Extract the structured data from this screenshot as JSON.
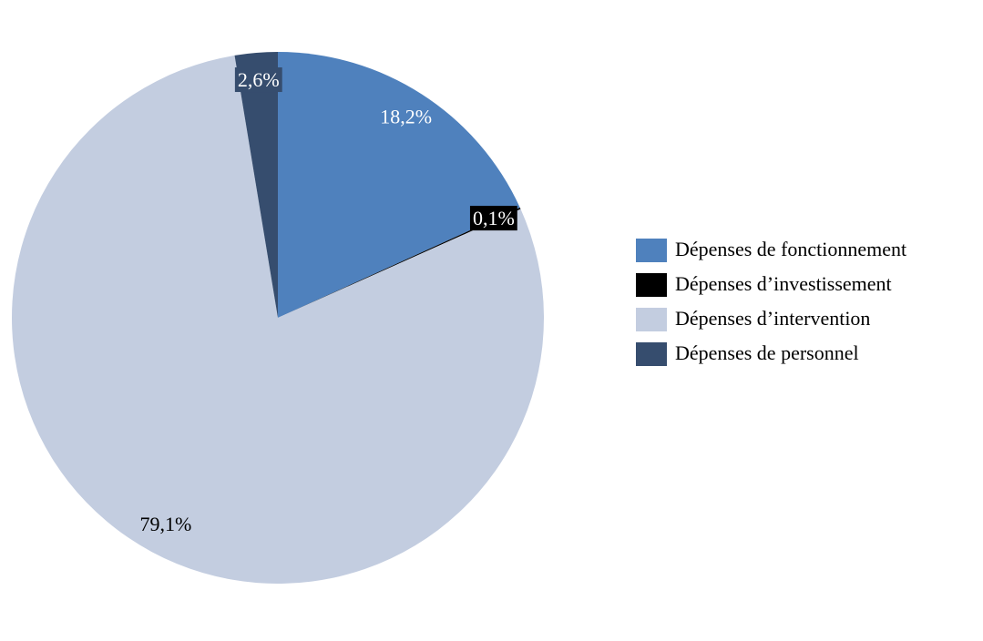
{
  "chart_data": {
    "type": "pie",
    "categories": [
      "Dépenses de fonctionnement",
      "Dépenses d’investissement",
      "Dépenses d’intervention",
      "Dépenses de personnel"
    ],
    "values": [
      18.2,
      0.1,
      79.1,
      2.6
    ],
    "value_labels": [
      "18,2%",
      "0,1%",
      "79,1%",
      "2,6%"
    ],
    "colors": [
      "#4f81bd",
      "#000000",
      "#c3cde0",
      "#364d6e"
    ],
    "legend": "right"
  }
}
